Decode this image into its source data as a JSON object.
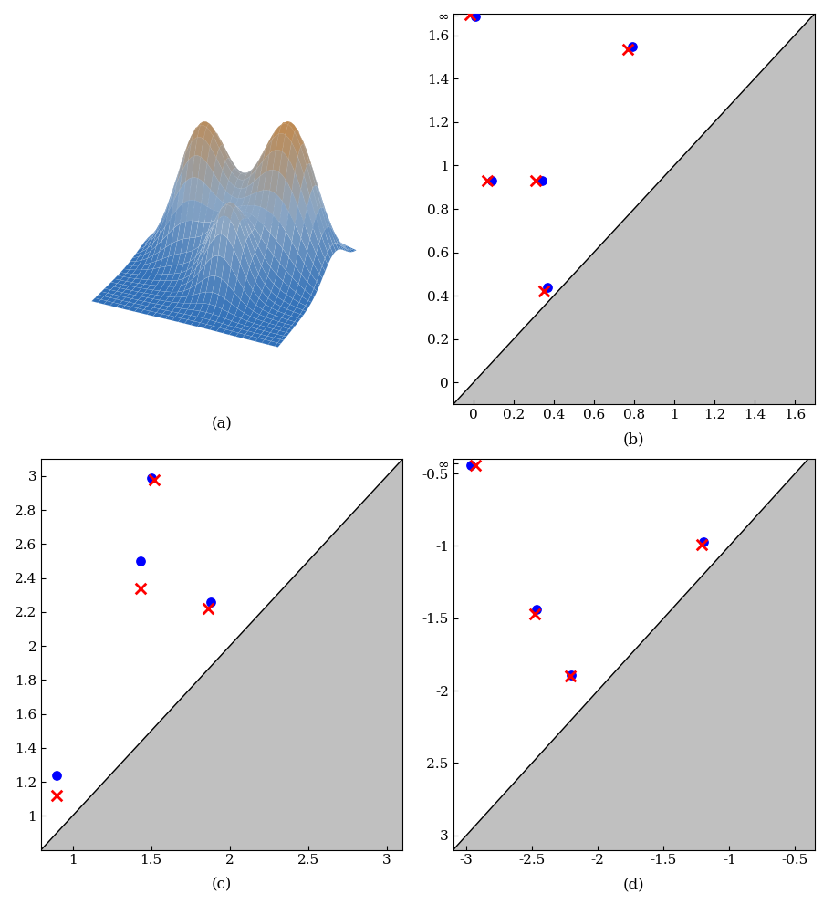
{
  "chart_data": [
    {
      "type": "surface",
      "caption": "(a)",
      "tick_labels": false
    },
    {
      "type": "scatter",
      "caption": "(b)",
      "grid": false,
      "xlim": [
        -0.1,
        1.7
      ],
      "ylim": [
        -0.1,
        1.7
      ],
      "xticks": [
        0,
        0.2,
        0.4,
        0.6,
        0.8,
        1,
        1.2,
        1.4,
        1.6
      ],
      "yticks": [
        0,
        0.2,
        0.4,
        0.6,
        0.8,
        1,
        1.2,
        1.4,
        1.6,
        {
          "value": 1.69,
          "label": "∞"
        }
      ],
      "series": [
        {
          "color": "#0000ff",
          "marker": "o",
          "x": [
            0.01,
            0.79,
            0.09,
            0.34,
            0.37
          ],
          "y": [
            1.685,
            1.55,
            0.93,
            0.93,
            0.44
          ]
        },
        {
          "color": "#ff0000",
          "marker": "x",
          "x": [
            -0.015,
            0.77,
            0.07,
            0.31,
            0.35
          ],
          "y": [
            1.695,
            1.535,
            0.93,
            0.93,
            0.42
          ]
        }
      ]
    },
    {
      "type": "scatter",
      "caption": "(c)",
      "grid": false,
      "xlim": [
        0.8,
        3.1
      ],
      "ylim": [
        0.8,
        3.1
      ],
      "xticks": [
        1,
        1.5,
        2,
        2.5,
        3
      ],
      "yticks": [
        1,
        1.2,
        1.4,
        1.6,
        1.8,
        2,
        2.2,
        2.4,
        2.6,
        2.8,
        3
      ],
      "series": [
        {
          "color": "#0000ff",
          "marker": "o",
          "x": [
            0.9,
            1.43,
            1.5,
            1.88
          ],
          "y": [
            1.24,
            2.5,
            2.99,
            2.26
          ]
        },
        {
          "color": "#ff0000",
          "marker": "x",
          "x": [
            0.9,
            1.43,
            1.52,
            1.86
          ],
          "y": [
            1.12,
            2.34,
            2.98,
            2.22
          ]
        }
      ]
    },
    {
      "type": "scatter",
      "caption": "(d)",
      "grid": false,
      "xlim": [
        -3.1,
        -0.35
      ],
      "ylim": [
        -3.1,
        -0.4
      ],
      "xticks": [
        -3,
        -2.5,
        -2,
        -1.5,
        -1,
        -0.5
      ],
      "yticks": [
        -3,
        -2.5,
        -2,
        -1.5,
        -1,
        -0.5,
        {
          "value": -0.43,
          "label": "∞"
        }
      ],
      "series": [
        {
          "color": "#0000ff",
          "marker": "o",
          "x": [
            -2.97,
            -1.2,
            -2.47,
            -2.2
          ],
          "y": [
            -0.44,
            -0.97,
            -1.44,
            -1.89
          ]
        },
        {
          "color": "#ff0000",
          "marker": "x",
          "x": [
            -2.93,
            -1.21,
            -2.48,
            -2.21
          ],
          "y": [
            -0.44,
            -0.99,
            -1.47,
            -1.9
          ]
        }
      ]
    }
  ]
}
